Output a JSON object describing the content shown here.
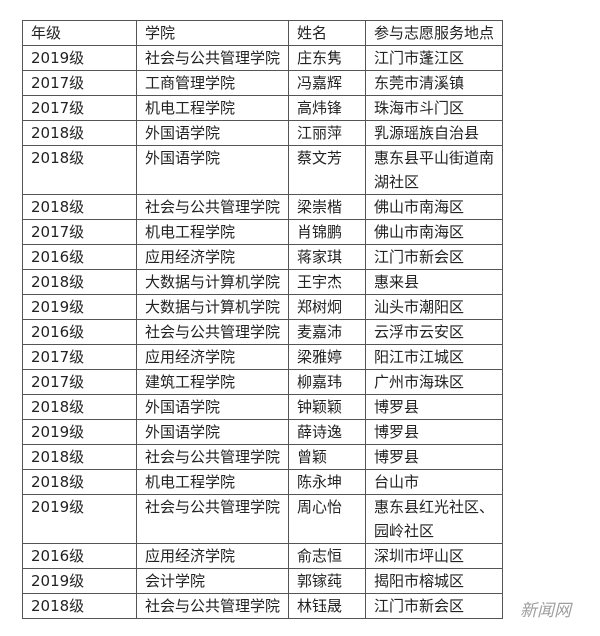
{
  "table": {
    "headers": [
      "年级",
      "学院",
      "姓名",
      "参与志愿服务地点"
    ],
    "rows": [
      [
        "2019级",
        "社会与公共管理学院",
        "庄东隽",
        "江门市蓬江区"
      ],
      [
        "2017级",
        "工商管理学院",
        "冯嘉辉",
        "东莞市清溪镇"
      ],
      [
        "2017级",
        "机电工程学院",
        "高炜锋",
        "珠海市斗门区"
      ],
      [
        "2018级",
        "外国语学院",
        "江丽萍",
        "乳源瑶族自治县"
      ],
      [
        "2018级",
        "外国语学院",
        "蔡文芳",
        "惠东县平山街道南湖社区"
      ],
      [
        "2018级",
        "社会与公共管理学院",
        "梁崇楷",
        "佛山市南海区"
      ],
      [
        "2017级",
        "机电工程学院",
        "肖锦鹏",
        "佛山市南海区"
      ],
      [
        "2016级",
        "应用经济学院",
        "蒋家琪",
        "江门市新会区"
      ],
      [
        "2018级",
        "大数据与计算机学院",
        "王宇杰",
        "惠来县"
      ],
      [
        "2019级",
        "大数据与计算机学院",
        "郑树炯",
        "汕头市潮阳区"
      ],
      [
        "2016级",
        "社会与公共管理学院",
        "麦嘉沛",
        "云浮市云安区"
      ],
      [
        "2017级",
        "应用经济学院",
        "梁雅婷",
        "阳江市江城区"
      ],
      [
        "2017级",
        "建筑工程学院",
        "柳嘉玮",
        "广州市海珠区"
      ],
      [
        "2018级",
        "外国语学院",
        "钟颖颖",
        "博罗县"
      ],
      [
        "2019级",
        "外国语学院",
        "薛诗逸",
        "博罗县"
      ],
      [
        "2018级",
        "社会与公共管理学院",
        "曾颖",
        "博罗县"
      ],
      [
        "2018级",
        "机电工程学院",
        "陈永坤",
        "台山市"
      ],
      [
        "2019级",
        "社会与公共管理学院",
        "周心怡",
        "惠东县红光社区、园岭社区"
      ],
      [
        "2016级",
        "应用经济学院",
        "俞志恒",
        "深圳市坪山区"
      ],
      [
        "2019级",
        "会计学院",
        "郭镓莼",
        "揭阳市榕城区"
      ],
      [
        "2018级",
        "社会与公共管理学院",
        "林钰晟",
        "江门市新会区"
      ]
    ]
  },
  "watermark": "新闻网"
}
